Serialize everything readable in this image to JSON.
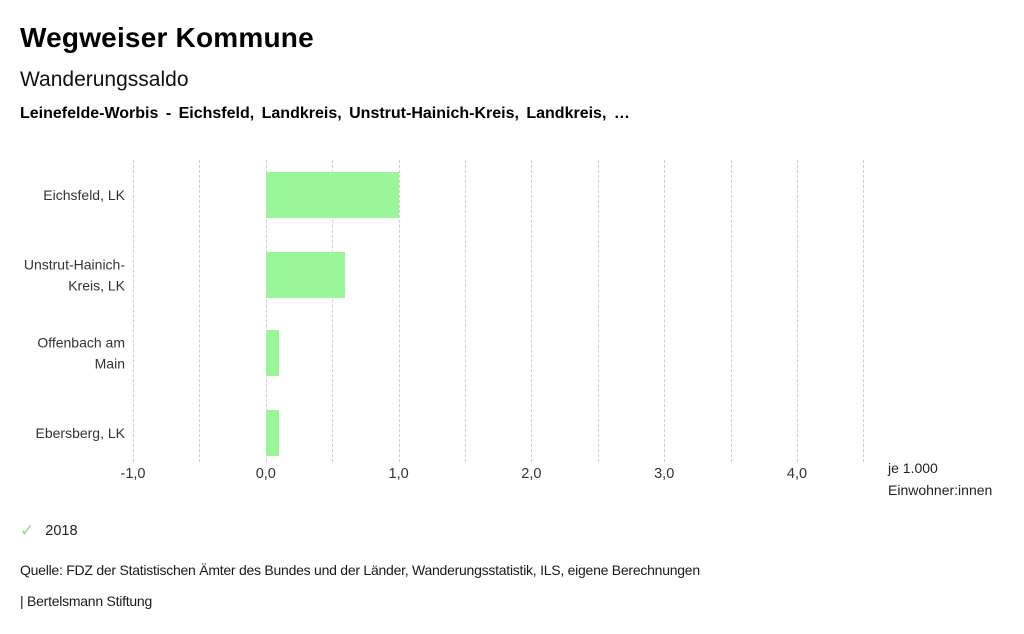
{
  "header": {
    "title": "Wegweiser Kommune",
    "subtitle": "Wanderungssaldo",
    "description": "Leinefelde-Worbis - Eichsfeld, Landkreis, Unstrut-Hainich-Kreis, Landkreis, …"
  },
  "chart_data": {
    "type": "bar",
    "orientation": "horizontal",
    "title": "Wanderungssaldo",
    "categories": [
      "Eichsfeld, LK",
      "Unstrut-Hainich-Kreis, LK",
      "Offenbach am Main",
      "Ebersberg, LK"
    ],
    "series": [
      {
        "name": "2018",
        "values": [
          1.0,
          0.6,
          0.1,
          0.1
        ]
      }
    ],
    "xlabel": "je 1.000 Einwohner:innen",
    "x_tick_labels": [
      "-1,0",
      "0,0",
      "1,0",
      "2,0",
      "3,0",
      "4,0"
    ],
    "x_tick_values": [
      -1.0,
      0.0,
      1.0,
      2.0,
      3.0,
      4.0
    ],
    "xlim": [
      -1.0,
      4.5
    ],
    "gridline_step": 0.5,
    "grid": true,
    "bar_color": "#99f699",
    "gridline_color": "#cfcfcf",
    "legend": {
      "position": "bottom-left",
      "items": [
        {
          "label": "2018",
          "checked": true,
          "color": "#8be08b"
        }
      ]
    }
  },
  "axis": {
    "unit_label_line1": "je 1.000",
    "unit_label_line2": "Einwohner:innen"
  },
  "icons": {
    "check": "✓"
  },
  "footer": {
    "source": "Quelle: FDZ der Statistischen Ämter des Bundes und der Länder, Wanderungsstatistik, ILS, eigene Berechnungen",
    "attribution": "| Bertelsmann Stiftung"
  }
}
